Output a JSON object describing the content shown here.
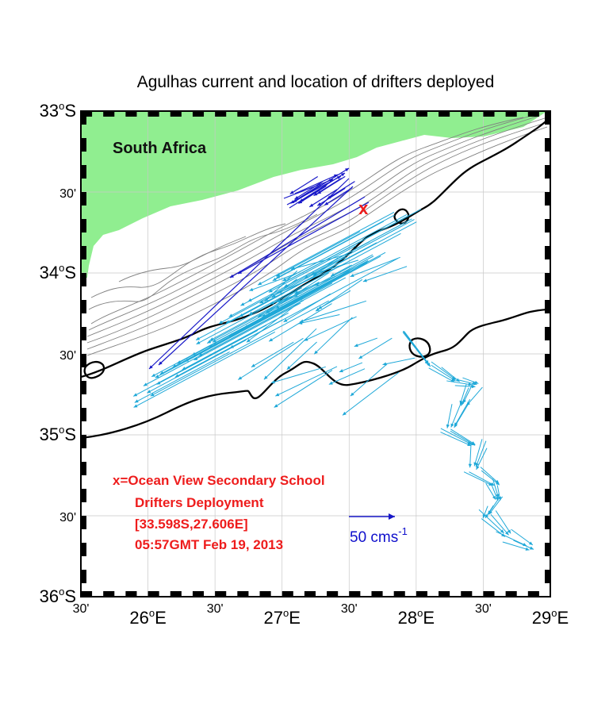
{
  "map": {
    "title": "Agulhas current and location of drifters deployed",
    "land_label": "South Africa",
    "deployment_marker": "x",
    "extent": {
      "lon_min": 25.5,
      "lon_max": 29.0,
      "lat_min": -36.0,
      "lat_max": -33.0
    },
    "deployment": {
      "lat": -33.598,
      "lon": 27.606
    },
    "lat_ticks": [
      {
        "lat": -33.0,
        "deg": "33",
        "hemi": "S",
        "min": ""
      },
      {
        "lat": -33.5,
        "deg": "",
        "hemi": "",
        "min": "30'"
      },
      {
        "lat": -34.0,
        "deg": "34",
        "hemi": "S",
        "min": ""
      },
      {
        "lat": -34.5,
        "deg": "",
        "hemi": "",
        "min": "30'"
      },
      {
        "lat": -35.0,
        "deg": "35",
        "hemi": "S",
        "min": ""
      },
      {
        "lat": -35.5,
        "deg": "",
        "hemi": "",
        "min": "30'"
      },
      {
        "lat": -36.0,
        "deg": "36",
        "hemi": "S",
        "min": ""
      }
    ],
    "lon_ticks": [
      {
        "lon": 25.5,
        "deg": "",
        "hemi": "",
        "min": "30'"
      },
      {
        "lon": 26.0,
        "deg": "26",
        "hemi": "E",
        "min": ""
      },
      {
        "lon": 26.5,
        "deg": "",
        "hemi": "",
        "min": "30'"
      },
      {
        "lon": 27.0,
        "deg": "27",
        "hemi": "E",
        "min": ""
      },
      {
        "lon": 27.5,
        "deg": "",
        "hemi": "",
        "min": "30'"
      },
      {
        "lon": 28.0,
        "deg": "28",
        "hemi": "E",
        "min": ""
      },
      {
        "lon": 28.5,
        "deg": "",
        "hemi": "",
        "min": "30'"
      },
      {
        "lon": 29.0,
        "deg": "29",
        "hemi": "E",
        "min": ""
      }
    ],
    "legend_lines": [
      "x=Ocean View Secondary School",
      "Drifters Deployment",
      "[33.598S,27.606E]",
      "05:57GMT Feb 19, 2013"
    ],
    "scale": {
      "value": "50 cms",
      "exponent": "-1"
    },
    "colors": {
      "land": "#90ee90",
      "current_vectors": "#1ea8d8",
      "coastal_vectors": "#1818c8",
      "marker": "#ee1c1c",
      "isobaths_bold": "#000000",
      "isobaths_thin": "#808080"
    }
  }
}
